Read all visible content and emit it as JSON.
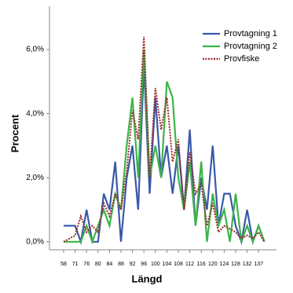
{
  "chart_data": {
    "type": "line",
    "x_label": "Längd",
    "y_label": "Procent",
    "categories": [
      "58",
      null,
      "71",
      null,
      "76",
      null,
      "80",
      null,
      "84",
      null,
      "88",
      null,
      "92",
      null,
      "96",
      null,
      "100",
      null,
      "104",
      null,
      "108",
      null,
      "112",
      null,
      "116",
      null,
      "120",
      null,
      "124",
      null,
      "128",
      null,
      "132",
      null,
      "137",
      null
    ],
    "ylim": [
      -0.25,
      7.35
    ],
    "yticks": [
      {
        "value": 0,
        "label": "0,0%"
      },
      {
        "value": 2,
        "label": "2,0%"
      },
      {
        "value": 4,
        "label": "4,0%"
      },
      {
        "value": 6,
        "label": "6,0%"
      }
    ],
    "legend": "top-right",
    "series": [
      {
        "name": "Provtagning 1",
        "color": "#3a58a8",
        "style": "solid",
        "values": [
          0.5,
          0.5,
          0.5,
          0,
          1,
          0,
          0,
          1.5,
          1,
          2.5,
          0,
          2,
          3,
          1,
          5.5,
          1.5,
          4.5,
          2,
          3,
          1.5,
          3,
          1,
          3.5,
          0.5,
          2,
          1,
          3,
          0.5,
          1.5,
          1.5,
          0.5,
          0,
          1,
          0,
          0.5,
          0
        ]
      },
      {
        "name": "Provtagning 2",
        "color": "#3cb44a",
        "style": "solid",
        "values": [
          0,
          0,
          0,
          0,
          0.5,
          0,
          0.5,
          1,
          0.5,
          1.5,
          1,
          3,
          4.5,
          2,
          6,
          2,
          3,
          2,
          5,
          4.5,
          2,
          1,
          2.5,
          0.5,
          2.5,
          0,
          1.5,
          0.5,
          1,
          0,
          1.5,
          0,
          0.5,
          0,
          0.5,
          0
        ]
      },
      {
        "name": "Provfiske",
        "color": "#9b2a2a",
        "style": "dotted",
        "values": [
          0,
          0.1,
          0.2,
          0.8,
          0.3,
          0.5,
          0.3,
          1.2,
          0.8,
          1.5,
          1,
          2.2,
          4.1,
          3.2,
          6.4,
          2,
          4.8,
          3.5,
          4.5,
          2.5,
          3.2,
          1,
          2.8,
          1.5,
          1.8,
          0.5,
          1.2,
          0.3,
          0.5,
          0.4,
          0.3,
          0.1,
          0.2,
          0.1,
          0.3,
          0
        ]
      }
    ]
  }
}
